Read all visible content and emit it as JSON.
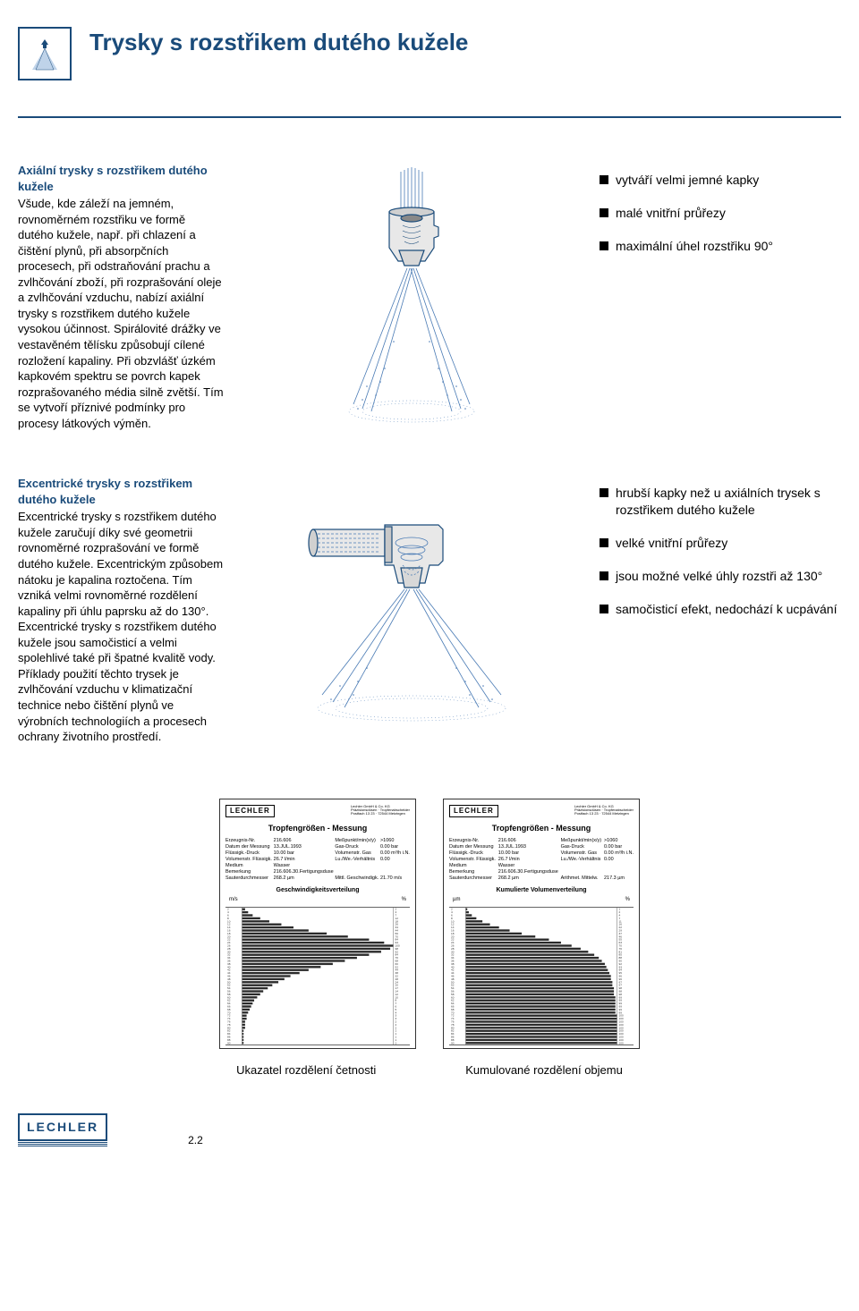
{
  "page": {
    "title": "Trysky s rozstřikem dutého kužele",
    "number": "2.2",
    "brand": "LECHLER"
  },
  "section1": {
    "heading": "Axiální trysky s rozstřikem dutého kužele",
    "body": "Všude, kde záleží na jemném, rovnoměrném rozstřiku ve formě dutého kužele, např. při chlazení a čištění plynů, při absorpčních procesech, při odstraňování prachu a zvlhčování zboží, při rozprašování oleje a zvlhčování vzduchu, nabízí axiální trysky s rozstřikem dutého kužele vysokou účinnost. Spirálovité drážky ve vestavěném tělísku způsobují cílené rozložení kapaliny. Při obzvlášť úzkém kapkovém spektru se povrch kapek rozprašovaného média silně zvětší. Tím se vytvoří příznivé podmínky pro procesy látkových výměn.",
    "bullets": [
      "vytváří velmi jemné kapky",
      "malé vnitřní průřezy",
      "maximální úhel rozstřiku 90°"
    ]
  },
  "section2": {
    "heading": "Excentrické trysky s rozstřikem dutého kužele",
    "body": "Excentrické trysky s rozstřikem dutého kužele zaručují díky své geometrii rovnoměrné rozprašování ve formě dutého kužele. Excentrickým způsobem nátoku je kapalina roztočena. Tím vzniká velmi rovnoměrné rozdělení kapaliny při úhlu paprsku až do 130°. Excentrické trysky s rozstřikem dutého kužele jsou samočisticí a velmi spolehlivé také při špatné kvalitě vody. Příklady použití těchto trysek je zvlhčování vzduchu v klimatizační technice nebo čištění plynů ve výrobních technologiích a procesech ochrany životního prostředí.",
    "bullets": [
      "hrubší kapky než u axiálních trysek s rozstřikem dutého kužele",
      "velké vnitřní průřezy",
      "jsou možné velké úhly rozstři až 130°",
      "samočisticí efekt, nedochází k ucpávání"
    ]
  },
  "charts": {
    "brand": "LECHLER",
    "left": {
      "title": "Tropfengrößen - Messung",
      "meta1_left": "Erzeugnis-Nr.\nDatum der Messung\nFlüssigk.-Druck\nVolumenstr. Flüssigk.\nMedium\nBemerkung\nSauterdurchmesser",
      "meta1_right": "216.606\n13.JUL.1993\n10.00 bar\n26.7 l/min\nWasser\n216.606.30.Fertigungsduse\n268.2 µm",
      "meta2_left": "Meßpunkt/min(x/y)\nGas-Druck\nVolumenstr. Gas\nLu./We.-Verhältnis\n\n\nMittl. Geschwindigk.",
      "meta2_right": ">1060\n0.00 bar\n0.00 m³/h i.N.\n0.00\n\n\n21.70 m/s",
      "subtitle": "Geschwindigkeitsverteilung",
      "caption": "Ukazatel rozdělení četnosti",
      "axis_left_header": "m/s",
      "axis_right_header": "%",
      "bars": [
        2,
        4,
        7,
        12,
        18,
        26,
        34,
        44,
        56,
        70,
        84,
        94,
        100,
        98,
        92,
        84,
        76,
        68,
        60,
        52,
        44,
        38,
        32,
        28,
        24,
        20,
        17,
        14,
        12,
        10,
        8,
        7,
        6,
        5,
        4,
        3,
        3,
        2,
        2,
        2,
        1,
        1,
        1,
        1,
        1
      ]
    },
    "right": {
      "title": "Tropfengrößen - Messung",
      "meta1_left": "Erzeugnis-Nr.\nDatum der Messung\nFlüssigk.-Druck\nVolumenstr. Flüssigk.\nMedium\nBemerkung\nSauterdurchmesser",
      "meta1_right": "216.606\n13.JUL.1993\n10.00 bar\n26.7 l/min\nWasser\n216.606.30.Fertigungsduse\n268.2 µm",
      "meta2_left": "Meßpunkt/min(x/y)\nGas-Druck\nVolumenstr. Gas\nLu./We.-Verhältnis\n\n\nArithmet. Mittelw.",
      "meta2_right": ">1060\n0.00 bar\n0.00 m³/h i.N.\n0.00\n\n\n217.3 µm",
      "subtitle": "Kumulierte Volumenverteilung",
      "caption": "Kumulované rozdělení objemu",
      "axis_left_header": "µm",
      "axis_right_header": "%",
      "bars": [
        1,
        2,
        4,
        7,
        11,
        16,
        22,
        29,
        37,
        46,
        55,
        63,
        70,
        76,
        81,
        85,
        88,
        90,
        92,
        93,
        94,
        95,
        96,
        96,
        97,
        97,
        98,
        98,
        98,
        99,
        99,
        99,
        99,
        99,
        99,
        100,
        100,
        100,
        100,
        100,
        100,
        100,
        100,
        100,
        100
      ]
    }
  },
  "colors": {
    "brand_blue": "#1a4b7a",
    "spray_blue": "#7fa8d4",
    "spray_dots": "#4a7bb5",
    "metal_gray": "#c8c8c8",
    "metal_shadow": "#888888"
  }
}
